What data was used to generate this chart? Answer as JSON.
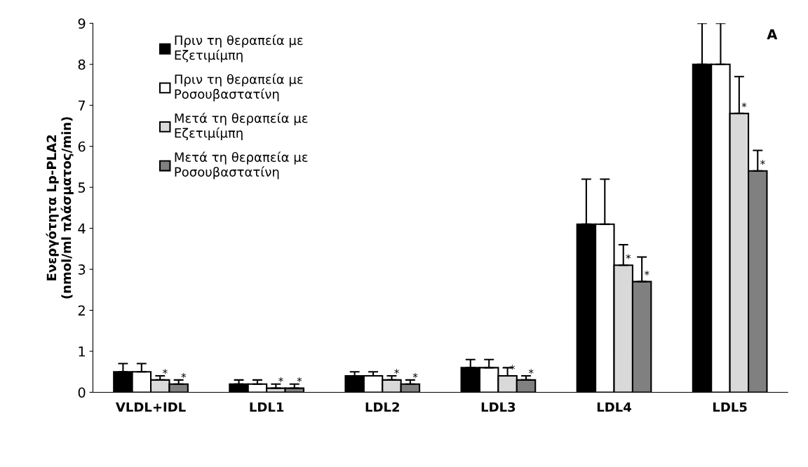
{
  "chart_data": {
    "type": "bar",
    "ylabel": "Ενεργότητα Lp-PLA2\n(nmol/ml πλάσματος/min)",
    "categories": [
      "VLDL+IDL",
      "LDL1",
      "LDL2",
      "LDL3",
      "LDL4",
      "LDL5"
    ],
    "series": [
      {
        "name": "Πριν τη θεραπεία με\nΕζετιμίμπη",
        "color": "#000000",
        "values": [
          0.5,
          0.2,
          0.4,
          0.6,
          4.1,
          8.0
        ],
        "errors": [
          0.2,
          0.1,
          0.1,
          0.2,
          1.1,
          1.0
        ]
      },
      {
        "name": "Πριν τη θεραπεία με\nΡοσουβαστατίνη",
        "color": "#ffffff",
        "values": [
          0.5,
          0.2,
          0.4,
          0.6,
          4.1,
          8.0
        ],
        "errors": [
          0.2,
          0.1,
          0.1,
          0.2,
          1.1,
          1.0
        ]
      },
      {
        "name": "Μετά τη θεραπεία με\nΕζετιμίμπη",
        "color": "#d9d9d9",
        "values": [
          0.3,
          0.1,
          0.3,
          0.4,
          3.1,
          6.8
        ],
        "errors": [
          0.1,
          0.1,
          0.1,
          0.2,
          0.5,
          0.9
        ],
        "value_labels": [
          "*",
          "*",
          "*",
          "*",
          "*",
          "*"
        ]
      },
      {
        "name": "Μετά τη θεραπεία με\nΡοσουβαστατίνη",
        "color": "#808080",
        "values": [
          0.2,
          0.1,
          0.2,
          0.3,
          2.7,
          5.4
        ],
        "errors": [
          0.1,
          0.1,
          0.1,
          0.1,
          0.6,
          0.5
        ],
        "value_labels": [
          "*",
          "*",
          "*",
          "*",
          "*",
          "*"
        ]
      }
    ],
    "ylim": [
      0,
      9
    ],
    "yticks": [
      0,
      1,
      2,
      3,
      4,
      5,
      6,
      7,
      8,
      9
    ],
    "annotations": [
      "A"
    ],
    "legend": "top left",
    "grid": false
  }
}
